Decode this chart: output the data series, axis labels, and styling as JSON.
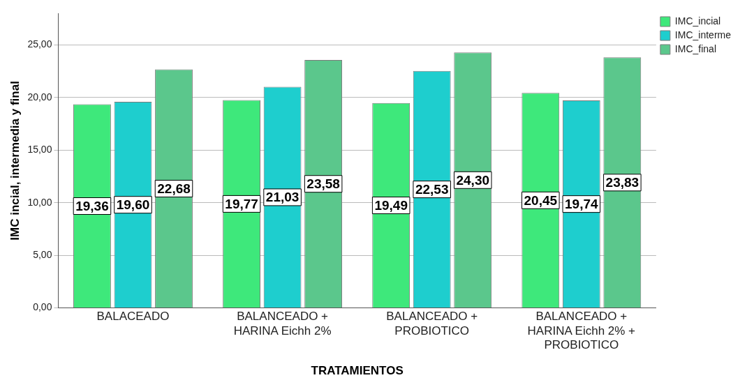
{
  "chart_data": {
    "type": "bar",
    "xlabel": "TRATAMIENTOS",
    "ylabel": "IMC incial, intermedia y final",
    "categories": [
      "BALACEADO",
      "BALANCEADO + HARINA Eichh 2%",
      "BALANCEADO + PROBIOTICO",
      "BALANCEADO + HARINA Eichh 2% + PROBIOTICO"
    ],
    "series": [
      {
        "name": "IMC_incial",
        "color": "#3ee87b",
        "values": [
          19.36,
          19.77,
          19.49,
          20.45
        ],
        "value_labels": [
          "19,36",
          "19,77",
          "19,49",
          "20,45"
        ]
      },
      {
        "name": "IMC_interme",
        "color": "#1ecece",
        "values": [
          19.6,
          21.03,
          22.53,
          19.74
        ],
        "value_labels": [
          "19,60",
          "21,03",
          "22,53",
          "19,74"
        ]
      },
      {
        "name": "IMC_final",
        "color": "#5bc78c",
        "values": [
          22.68,
          23.58,
          24.3,
          23.83
        ],
        "value_labels": [
          "22,68",
          "23,58",
          "24,30",
          "23,83"
        ]
      }
    ],
    "ylim": [
      0,
      28
    ],
    "yticks": [
      {
        "value": 0,
        "label": "0,00"
      },
      {
        "value": 5,
        "label": "5,00"
      },
      {
        "value": 10,
        "label": "10,00"
      },
      {
        "value": 15,
        "label": "15,00"
      },
      {
        "value": 20,
        "label": "20,00"
      },
      {
        "value": 25,
        "label": "25,00"
      }
    ],
    "grid": "y",
    "legend": "top right"
  }
}
